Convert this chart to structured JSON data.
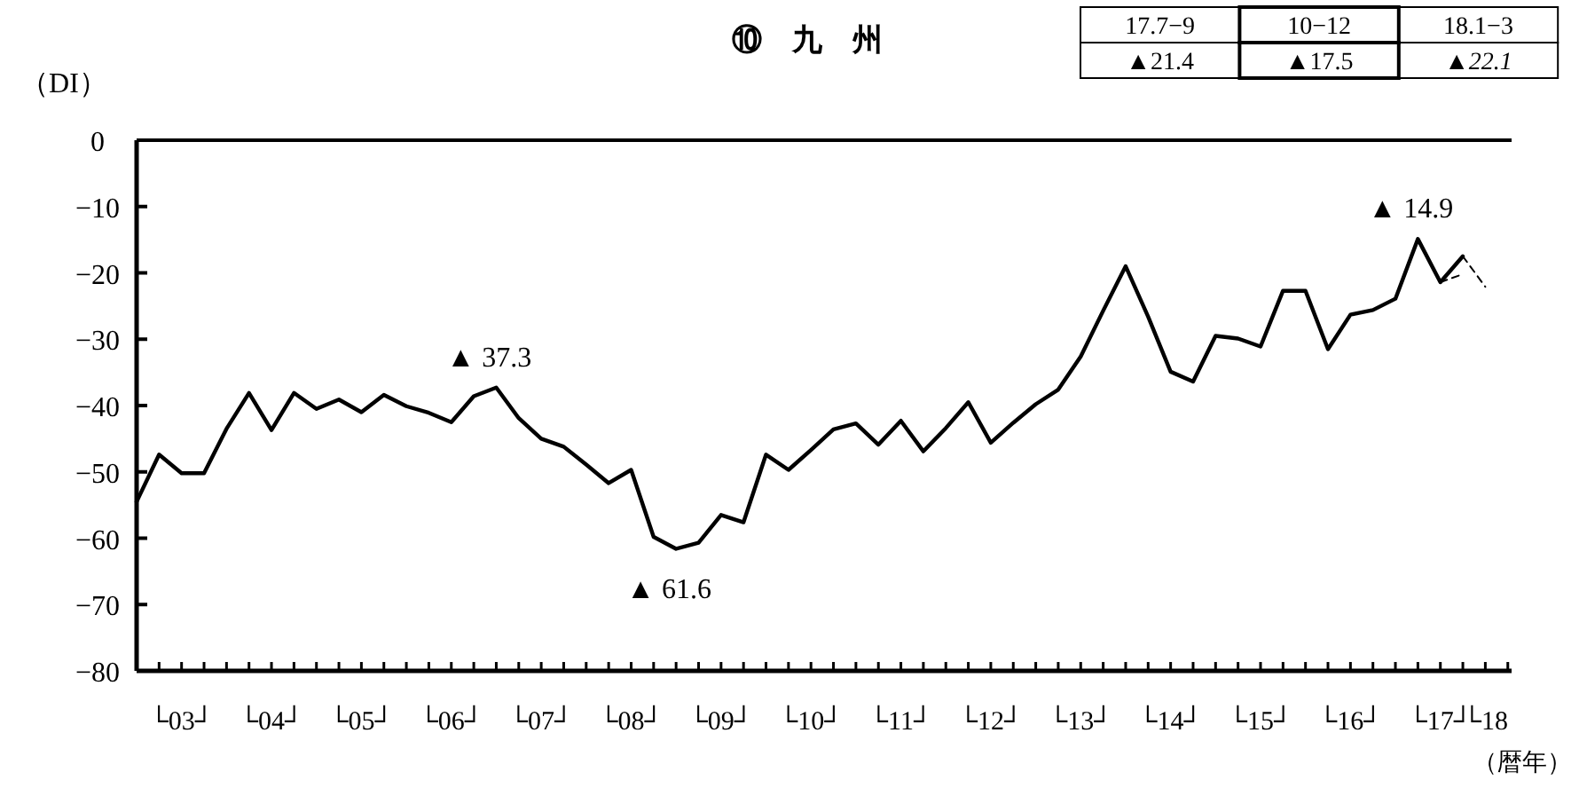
{
  "chart_data": {
    "type": "line",
    "title": "⑩　九　州",
    "ylabel": "（DI）",
    "xlabel": "（暦年）",
    "categories": [
      null,
      null,
      "└03┘",
      null,
      null,
      null,
      "└04┘",
      null,
      null,
      null,
      "└05┘",
      null,
      null,
      null,
      "└06┘",
      null,
      null,
      null,
      "└07┘",
      null,
      null,
      null,
      "└08┘",
      null,
      null,
      null,
      "└09┘",
      null,
      null,
      null,
      "└10┘",
      null,
      null,
      null,
      "└11┘",
      null,
      null,
      null,
      "└12┘",
      null,
      null,
      null,
      "└13┘",
      null,
      null,
      null,
      "└14┘",
      null,
      null,
      null,
      "└15┘",
      null,
      null,
      null,
      "└16┘",
      null,
      null,
      null,
      "└17┘",
      null,
      "└18"
    ],
    "series": [
      {
        "color": "#000000",
        "line_style": "solid",
        "values": [
          -54.5,
          -47.4,
          -50.2,
          -50.2,
          -43.5,
          -38.1,
          -43.7,
          -38.1,
          -40.5,
          -39.1,
          -41,
          -38.4,
          -40.1,
          -41.1,
          -42.5,
          -38.6,
          -37.3,
          -41.9,
          -45,
          -46.2,
          -48.9,
          -51.7,
          -49.7,
          -59.8,
          -61.6,
          -60.7,
          -56.5,
          -57.6,
          -47.4,
          -49.7,
          -46.7,
          -43.6,
          -42.7,
          -45.9,
          -42.3,
          -46.9,
          -43.4,
          -39.5,
          -45.6,
          -42.6,
          -39.8,
          -37.6,
          -32.6,
          -25.7,
          -19,
          -26.6,
          -34.9,
          -36.4,
          -29.5,
          -29.9,
          -31.1,
          -22.7,
          -22.7,
          -31.5,
          -26.3,
          -25.6,
          -23.9,
          -14.9,
          -21.4,
          -17.5,
          null
        ]
      },
      {
        "color": "#000000",
        "line_style": "dashed",
        "values": [
          null,
          null,
          null,
          null,
          null,
          null,
          null,
          null,
          null,
          null,
          null,
          null,
          null,
          null,
          null,
          null,
          null,
          null,
          null,
          null,
          null,
          null,
          null,
          null,
          null,
          null,
          null,
          null,
          null,
          null,
          null,
          null,
          null,
          null,
          null,
          null,
          null,
          null,
          null,
          null,
          null,
          null,
          null,
          null,
          null,
          null,
          null,
          null,
          null,
          null,
          null,
          null,
          null,
          null,
          null,
          null,
          null,
          null,
          -21.4,
          -20.2,
          null
        ]
      },
      {
        "color": "#000000",
        "line_style": "dashed",
        "values": [
          null,
          null,
          null,
          null,
          null,
          null,
          null,
          null,
          null,
          null,
          null,
          null,
          null,
          null,
          null,
          null,
          null,
          null,
          null,
          null,
          null,
          null,
          null,
          null,
          null,
          null,
          null,
          null,
          null,
          null,
          null,
          null,
          null,
          null,
          null,
          null,
          null,
          null,
          null,
          null,
          null,
          null,
          null,
          null,
          null,
          null,
          null,
          null,
          null,
          null,
          null,
          null,
          null,
          null,
          null,
          null,
          null,
          null,
          null,
          -17.5,
          -22.1
        ]
      }
    ],
    "ylim": [
      -80,
      0
    ],
    "yticks": [
      {
        "value": 0,
        "label": "0"
      },
      {
        "value": -10,
        "label": "−10"
      },
      {
        "value": -20,
        "label": "−20"
      },
      {
        "value": -30,
        "label": "−30"
      },
      {
        "value": -40,
        "label": "−40"
      },
      {
        "value": -50,
        "label": "−50"
      },
      {
        "value": -60,
        "label": "−60"
      },
      {
        "value": -70,
        "label": "−70"
      },
      {
        "value": -80,
        "label": "−80"
      }
    ],
    "grid": false,
    "marker": "none",
    "annotations": [
      {
        "text": "▲ 37.3",
        "y": -37.3
      },
      {
        "text": "▲ 61.6",
        "y": -61.6
      },
      {
        "text": "▲ 14.9",
        "y": -14.9
      },
      "17.7−9",
      "10−12",
      "18.1−3",
      "▲21.4",
      "▲17.5",
      "▲22.1"
    ]
  }
}
